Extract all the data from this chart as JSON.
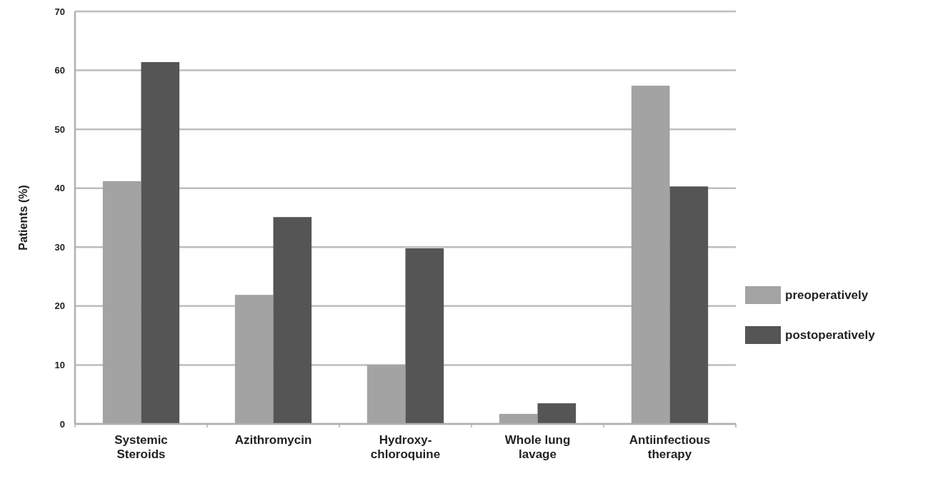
{
  "chart_data": {
    "type": "bar",
    "ylabel": "Patients (%)",
    "categories": [
      "Systemic\nSteroids",
      "Azithromycin",
      "Hydroxy-\nchloroquine",
      "Whole lung\nlavage",
      "Antiinfectious\ntherapy"
    ],
    "series": [
      {
        "name": "preoperatively",
        "color": "#a3a3a3",
        "values": [
          41.2,
          21.9,
          10.0,
          1.7,
          57.4
        ]
      },
      {
        "name": "postoperatively",
        "color": "#555555",
        "values": [
          61.4,
          35.1,
          29.8,
          3.5,
          40.3
        ]
      }
    ],
    "ylim": [
      0,
      70
    ],
    "yticks": [
      0,
      10,
      20,
      30,
      40,
      50,
      60,
      70
    ],
    "grid": "y",
    "legend": "right"
  }
}
